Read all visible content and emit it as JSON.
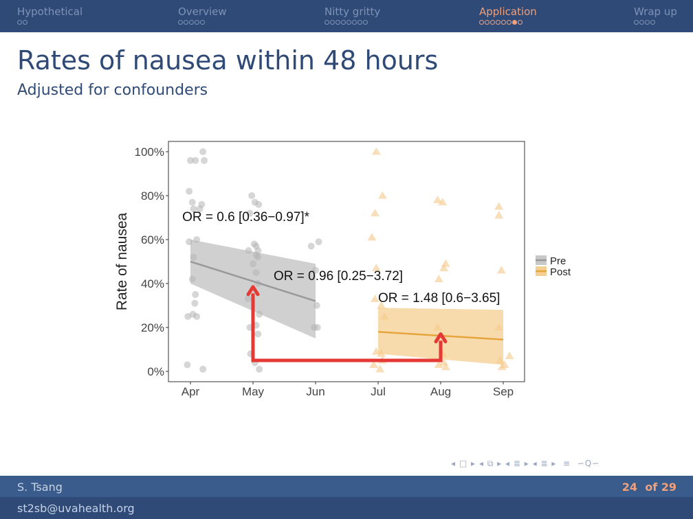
{
  "nav": {
    "sections": [
      {
        "label": "Hypothetical",
        "dots": 2
      },
      {
        "label": "Overview",
        "dots": 5
      },
      {
        "label": "Nitty gritty",
        "dots": 8
      },
      {
        "label": "Application",
        "dots": 8,
        "active": true,
        "current_dot": 7
      },
      {
        "label": "Wrap up",
        "dots": 4
      }
    ],
    "icons": [
      "arrow-left-icon",
      "frame-icon",
      "arrow-right-icon",
      "subsection-icon",
      "section-icon",
      "list-icon",
      "search-icon"
    ]
  },
  "slide": {
    "title": "Rates of nausea within 48 hours",
    "subtitle": "Adjusted for confounders"
  },
  "chart_data": {
    "type": "scatter",
    "x_categories": [
      "Apr",
      "May",
      "Jun",
      "Jul",
      "Aug",
      "Sep"
    ],
    "ylabel": "Rate of nausea",
    "ylim": [
      0,
      100
    ],
    "y_ticks": [
      "0%",
      "20%",
      "40%",
      "60%",
      "80%",
      "100%"
    ],
    "grid": false,
    "legend": {
      "placement": "right",
      "entries": [
        "Pre",
        "Post"
      ]
    },
    "series": [
      {
        "name": "Pre",
        "color": "#b5b5b5",
        "line_color": "#999999",
        "marker": "circle",
        "points": [
          [
            0.98,
            82
          ],
          [
            1.05,
            74
          ],
          [
            1.15,
            74
          ],
          [
            1.03,
            77
          ],
          [
            1.18,
            76
          ],
          [
            0.98,
            59
          ],
          [
            1.1,
            60
          ],
          [
            1.05,
            52
          ],
          [
            1.0,
            96
          ],
          [
            1.08,
            96
          ],
          [
            1.22,
            96
          ],
          [
            1.2,
            100
          ],
          [
            1.03,
            42
          ],
          [
            1.08,
            35
          ],
          [
            1.07,
            31
          ],
          [
            0.96,
            25
          ],
          [
            1.04,
            26
          ],
          [
            1.1,
            25
          ],
          [
            0.95,
            3
          ],
          [
            1.2,
            1
          ],
          [
            1.98,
            80
          ],
          [
            2.03,
            77
          ],
          [
            2.09,
            76
          ],
          [
            1.95,
            72
          ],
          [
            1.93,
            55
          ],
          [
            2.05,
            57
          ],
          [
            2.08,
            55
          ],
          [
            2.05,
            53
          ],
          [
            2.02,
            58
          ],
          [
            2.08,
            52
          ],
          [
            2.0,
            49
          ],
          [
            2.05,
            45
          ],
          [
            2.08,
            40
          ],
          [
            1.92,
            33
          ],
          [
            2.1,
            26
          ],
          [
            2.05,
            21
          ],
          [
            2.08,
            17
          ],
          [
            1.95,
            20
          ],
          [
            1.96,
            8
          ],
          [
            2.03,
            4
          ],
          [
            2.1,
            1
          ],
          [
            2.93,
            57
          ],
          [
            3.05,
            59
          ],
          [
            3.0,
            46
          ],
          [
            3.02,
            30
          ],
          [
            2.98,
            20
          ],
          [
            3.03,
            20
          ]
        ],
        "fit": {
          "x": [
            1,
            3
          ],
          "y": [
            50,
            32
          ],
          "ci_low": [
            40,
            15
          ],
          "ci_high": [
            60,
            49
          ]
        }
      },
      {
        "name": "Post",
        "color": "#f5c98a",
        "line_color": "#e6a43d",
        "marker": "triangle",
        "points": [
          [
            3.97,
            100
          ],
          [
            4.07,
            80
          ],
          [
            3.95,
            72
          ],
          [
            3.9,
            61
          ],
          [
            3.97,
            47
          ],
          [
            3.95,
            33
          ],
          [
            4.05,
            30
          ],
          [
            4.1,
            25
          ],
          [
            3.97,
            9
          ],
          [
            4.05,
            8
          ],
          [
            4.07,
            5
          ],
          [
            3.93,
            3
          ],
          [
            4.03,
            1
          ],
          [
            4.95,
            78
          ],
          [
            5.03,
            77
          ],
          [
            5.05,
            47
          ],
          [
            5.08,
            49
          ],
          [
            4.97,
            42
          ],
          [
            4.95,
            20
          ],
          [
            5.03,
            8
          ],
          [
            5.05,
            4
          ],
          [
            4.97,
            3
          ],
          [
            5.08,
            2
          ],
          [
            5.93,
            75
          ],
          [
            5.93,
            71
          ],
          [
            5.97,
            46
          ],
          [
            6.1,
            7
          ],
          [
            5.95,
            5
          ],
          [
            6.02,
            3
          ],
          [
            5.98,
            2
          ],
          [
            5.93,
            20
          ]
        ],
        "fit": {
          "x": [
            4,
            6
          ],
          "y": [
            18,
            14.5
          ],
          "ci_low": [
            8,
            3
          ],
          "ci_high": [
            29,
            28
          ]
        }
      }
    ],
    "annotations": [
      {
        "text": "OR = 0.6 [0.36−0.97]*",
        "x": 0.87,
        "y": 68.5
      },
      {
        "text": "OR = 0.96 [0.25−3.72]",
        "x": 2.33,
        "y": 41.5
      },
      {
        "text": "OR = 1.48 [0.6−3.65]",
        "x": 4.0,
        "y": 31.5
      }
    ],
    "arrow": {
      "color": "#e53935",
      "path": [
        [
          2,
          5
        ],
        [
          5,
          5
        ]
      ],
      "heads_at": [
        [
          2,
          38.5
        ],
        [
          5,
          17
        ]
      ]
    }
  },
  "footer": {
    "author": "S. Tsang",
    "email": "st2sb@uvahealth.org",
    "page": "24",
    "of_label": "of",
    "total": "29"
  }
}
